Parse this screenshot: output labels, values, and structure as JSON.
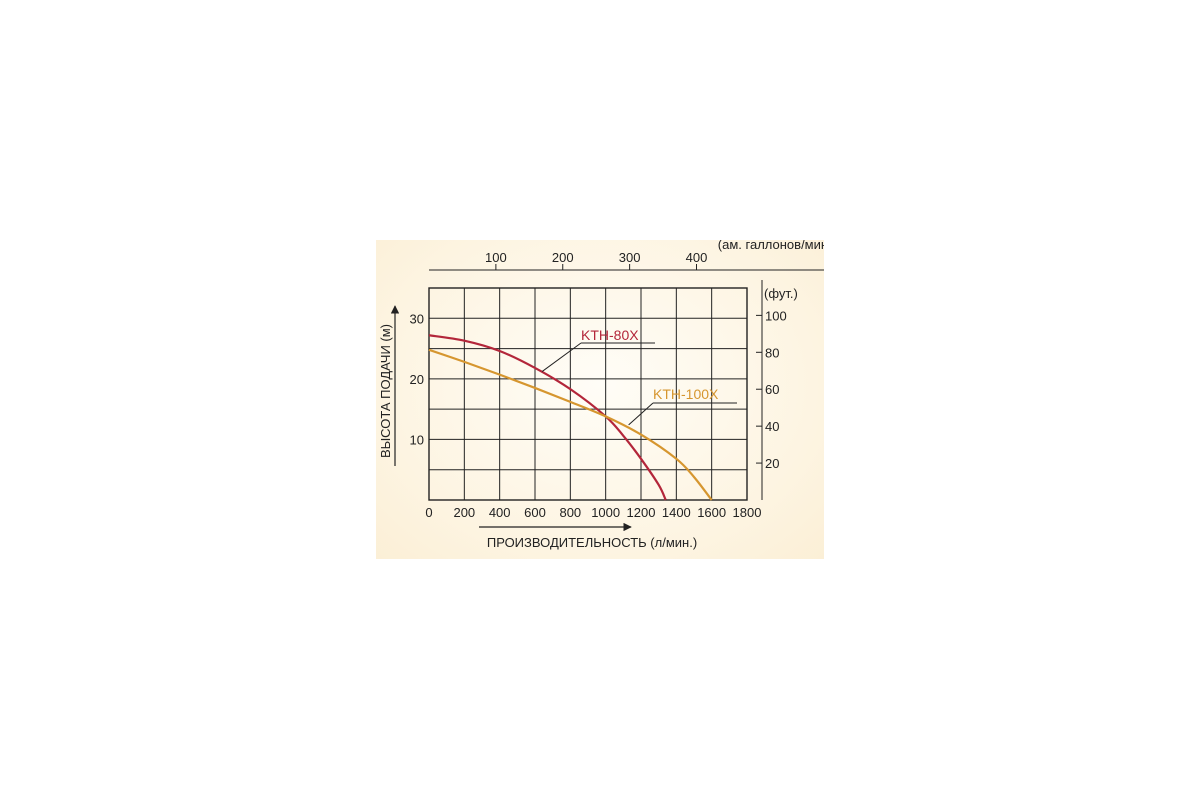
{
  "chart_data": {
    "type": "line",
    "title": "",
    "xlabel": "ПРОИЗВОДИТЕЛЬНОСТЬ (л/мин.)",
    "ylabel": "ВЫСОТА ПОДАЧИ (м)",
    "xlim": [
      0,
      1800
    ],
    "ylim": [
      0,
      35
    ],
    "x_ticks": [
      "0",
      "200",
      "400",
      "600",
      "800",
      "1000",
      "1200",
      "1400",
      "1600",
      "1800"
    ],
    "y_ticks": [
      "10",
      "20",
      "30"
    ],
    "x2": {
      "label": "(ам. галлонов/мин.)",
      "unit_factor": 0.264172,
      "ticks": [
        "100",
        "200",
        "300",
        "400"
      ]
    },
    "y2": {
      "label": "(фут.)",
      "unit_factor": 3.28084,
      "ticks": [
        "20",
        "40",
        "60",
        "80",
        "100"
      ]
    },
    "grid": true,
    "series": [
      {
        "name": "KTH-80X",
        "color": "#b3263a",
        "x": [
          0,
          200,
          400,
          600,
          800,
          1000,
          1100,
          1200,
          1300,
          1340
        ],
        "y": [
          27.2,
          26.3,
          24.6,
          21.8,
          18.3,
          13.8,
          10.6,
          6.8,
          2.5,
          0
        ]
      },
      {
        "name": "KTH-100X",
        "color": "#d6962f",
        "x": [
          0,
          200,
          400,
          600,
          800,
          1000,
          1200,
          1400,
          1500,
          1600
        ],
        "y": [
          24.8,
          22.8,
          20.7,
          18.5,
          16.2,
          13.8,
          10.8,
          6.8,
          3.8,
          0
        ]
      }
    ]
  }
}
